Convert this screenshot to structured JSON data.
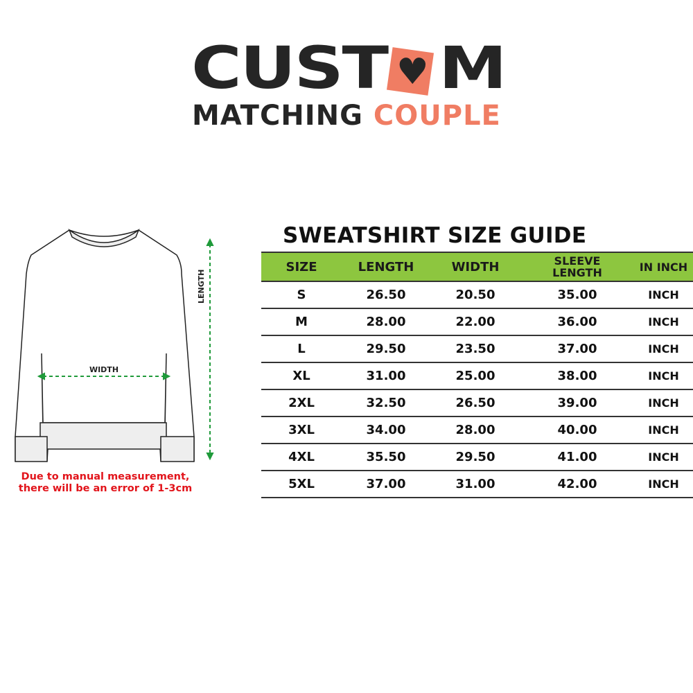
{
  "logo": {
    "line1": "CUSTOM",
    "line1_a": "CUST",
    "line1_b": "M",
    "line2_a": "MATCHING",
    "line2_b": "COUPLE",
    "accent": "#f07d63",
    "dark": "#252525"
  },
  "title": "SWEATSHIRT SIZE GUIDE",
  "header_color": "#8dc63f",
  "table": {
    "headers": [
      "SIZE",
      "LENGTH",
      "WIDTH",
      "SLEEVE LENGTH",
      "IN INCH"
    ],
    "rows": [
      [
        "S",
        "26.50",
        "20.50",
        "35.00",
        "INCH"
      ],
      [
        "M",
        "28.00",
        "22.00",
        "36.00",
        "INCH"
      ],
      [
        "L",
        "29.50",
        "23.50",
        "37.00",
        "INCH"
      ],
      [
        "XL",
        "31.00",
        "25.00",
        "38.00",
        "INCH"
      ],
      [
        "2XL",
        "32.50",
        "26.50",
        "39.00",
        "INCH"
      ],
      [
        "3XL",
        "34.00",
        "28.00",
        "40.00",
        "INCH"
      ],
      [
        "4XL",
        "35.50",
        "29.50",
        "41.00",
        "INCH"
      ],
      [
        "5XL",
        "37.00",
        "31.00",
        "42.00",
        "INCH"
      ]
    ]
  },
  "diagram": {
    "width_label": "WIDTH",
    "length_label": "LENGTH"
  },
  "note": {
    "line1": "Due to manual measurement,",
    "line2": "there will be an error of 1-3cm"
  }
}
